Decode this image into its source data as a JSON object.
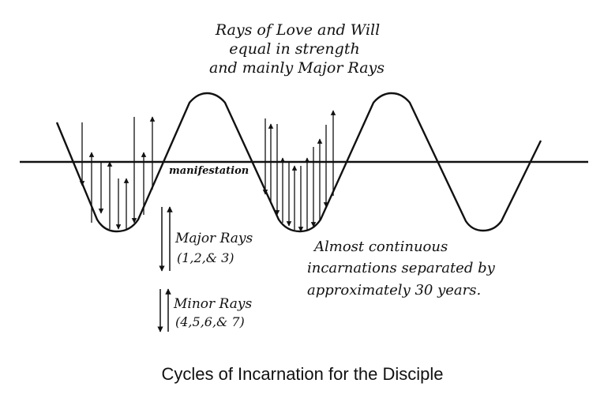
{
  "top_note": {
    "line1": "Rays of Love and Will",
    "line2": "equal in strength",
    "line3": "and mainly Major Rays"
  },
  "axis_label": "manifestation",
  "legend": {
    "major_title": "Major Rays",
    "major_numbers": "(1,2,& 3)",
    "minor_title": "Minor Rays",
    "minor_numbers": "(4,5,6,& 7)"
  },
  "side_note": {
    "line1": "Almost continuous",
    "line2": "incarnations separated by",
    "line3": "approximately 30 years."
  },
  "caption": "Cycles of Incarnation for the Disciple",
  "colors": {
    "ink": "#111111",
    "background": "#ffffff"
  }
}
